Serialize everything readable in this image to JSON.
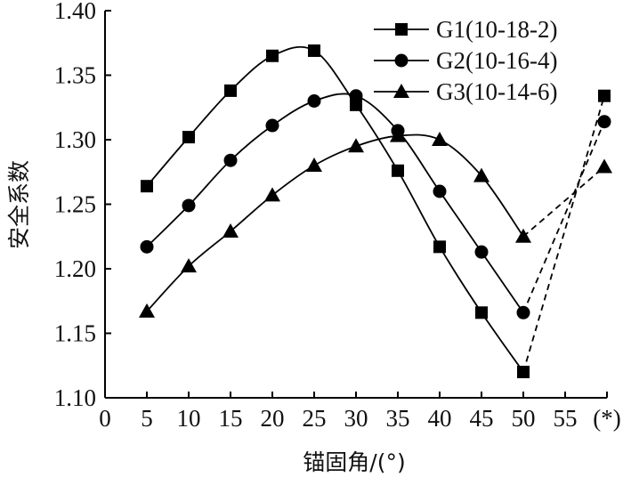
{
  "chart_data": {
    "type": "line",
    "xlabel": "锚固角/(°)",
    "ylabel": "安全系数",
    "x_ticks": [
      "0",
      "5",
      "10",
      "15",
      "20",
      "25",
      "30",
      "35",
      "40",
      "45",
      "50",
      "55",
      "(*)"
    ],
    "xlim": [
      0,
      60
    ],
    "ylim": [
      1.1,
      1.4
    ],
    "y_ticks": [
      "1.10",
      "1.15",
      "1.20",
      "1.25",
      "1.30",
      "1.35",
      "1.40"
    ],
    "legend_position": "top-right",
    "series": [
      {
        "name": "G1(10-18-2)",
        "marker": "square",
        "x": [
          5,
          10,
          15,
          20,
          25,
          30,
          35,
          40,
          45,
          50
        ],
        "y": [
          1.264,
          1.302,
          1.338,
          1.365,
          1.369,
          1.327,
          1.276,
          1.217,
          1.166,
          1.12
        ],
        "star_value": 1.334
      },
      {
        "name": "G2(10-16-4)",
        "marker": "circle",
        "x": [
          5,
          10,
          15,
          20,
          25,
          30,
          35,
          40,
          45,
          50
        ],
        "y": [
          1.217,
          1.249,
          1.284,
          1.311,
          1.33,
          1.334,
          1.307,
          1.26,
          1.213,
          1.166
        ],
        "star_value": 1.314
      },
      {
        "name": "G3(10-14-6)",
        "marker": "triangle",
        "x": [
          5,
          10,
          15,
          20,
          25,
          30,
          35,
          40,
          45,
          50
        ],
        "y": [
          1.167,
          1.202,
          1.229,
          1.257,
          1.28,
          1.295,
          1.303,
          1.3,
          1.272,
          1.225
        ],
        "star_value": 1.279
      }
    ]
  }
}
